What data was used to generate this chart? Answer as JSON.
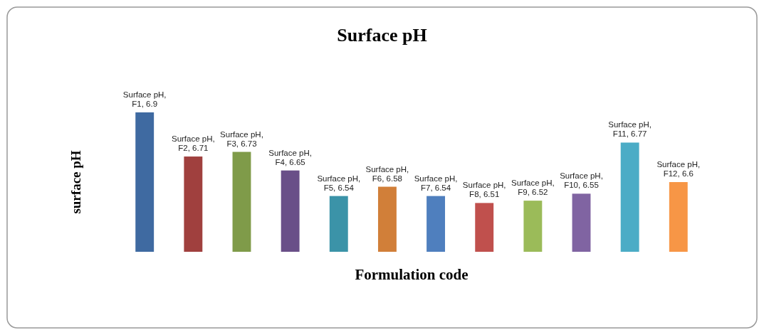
{
  "chart_data": {
    "type": "bar",
    "title": "Surface pH",
    "xlabel": "Formulation code",
    "ylabel": "surface pH",
    "categories": [
      null,
      null,
      null,
      null,
      null,
      null,
      null,
      null,
      null,
      null,
      null,
      null
    ],
    "series": [
      {
        "values": [
          6.9,
          6.71,
          6.73,
          6.65,
          6.54,
          6.58,
          6.54,
          6.51,
          6.52,
          6.55,
          6.77,
          6.6
        ],
        "value_labels": [
          "Surface pH, F1, 6.9",
          "Surface pH, F2, 6.71",
          "Surface pH, F3, 6.73",
          "Surface pH, F4, 6.65",
          "Surface pH, F5, 6.54",
          "Surface pH, F6, 6.58",
          "Surface pH, F7, 6.54",
          "Surface pH, F8, 6.51",
          "Surface pH, F9, 6.52",
          "Surface pH, F10, 6.55",
          "Surface pH, F11, 6.77",
          "Surface pH, F12, 6.6"
        ],
        "colors": [
          "#3f6aa1",
          "#a0403e",
          "#7f9b49",
          "#694f88",
          "#3b93a8",
          "#d17f39",
          "#4f7fbe",
          "#c0504d",
          "#9bbb59",
          "#8064a2",
          "#4bacc6",
          "#f79646"
        ]
      }
    ],
    "ylim": [
      6.3,
      6.9
    ],
    "tick_labels": false
  }
}
